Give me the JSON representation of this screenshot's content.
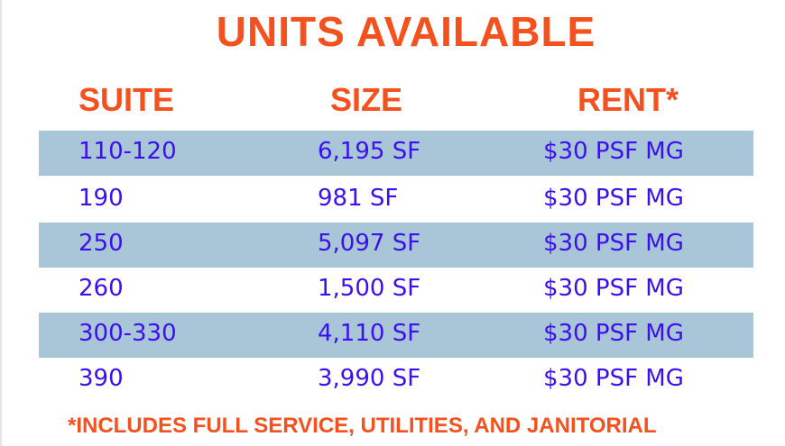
{
  "title": "UNITS AVAILABLE",
  "headers": {
    "suite": "SUITE",
    "size": "SIZE",
    "rent": "RENT*"
  },
  "rows": [
    {
      "suite": "110-120",
      "size": "6,195 SF",
      "rent": "$30 PSF MG"
    },
    {
      "suite": "190",
      "size": "981 SF",
      "rent": "$30 PSF MG"
    },
    {
      "suite": "250",
      "size": "5,097 SF",
      "rent": "$30 PSF MG"
    },
    {
      "suite": "260",
      "size": "1,500 SF",
      "rent": "$30 PSF MG"
    },
    {
      "suite": "300-330",
      "size": "4,110 SF",
      "rent": "$30 PSF MG"
    },
    {
      "suite": "390",
      "size": "3,990 SF",
      "rent": "$30 PSF MG"
    }
  ],
  "footnote": "*INCLUDES FULL SERVICE, UTILITIES, AND JANITORIAL",
  "colors": {
    "accent": "#f4511e",
    "text": "#3a10f0",
    "band": "#a9c5d8"
  }
}
